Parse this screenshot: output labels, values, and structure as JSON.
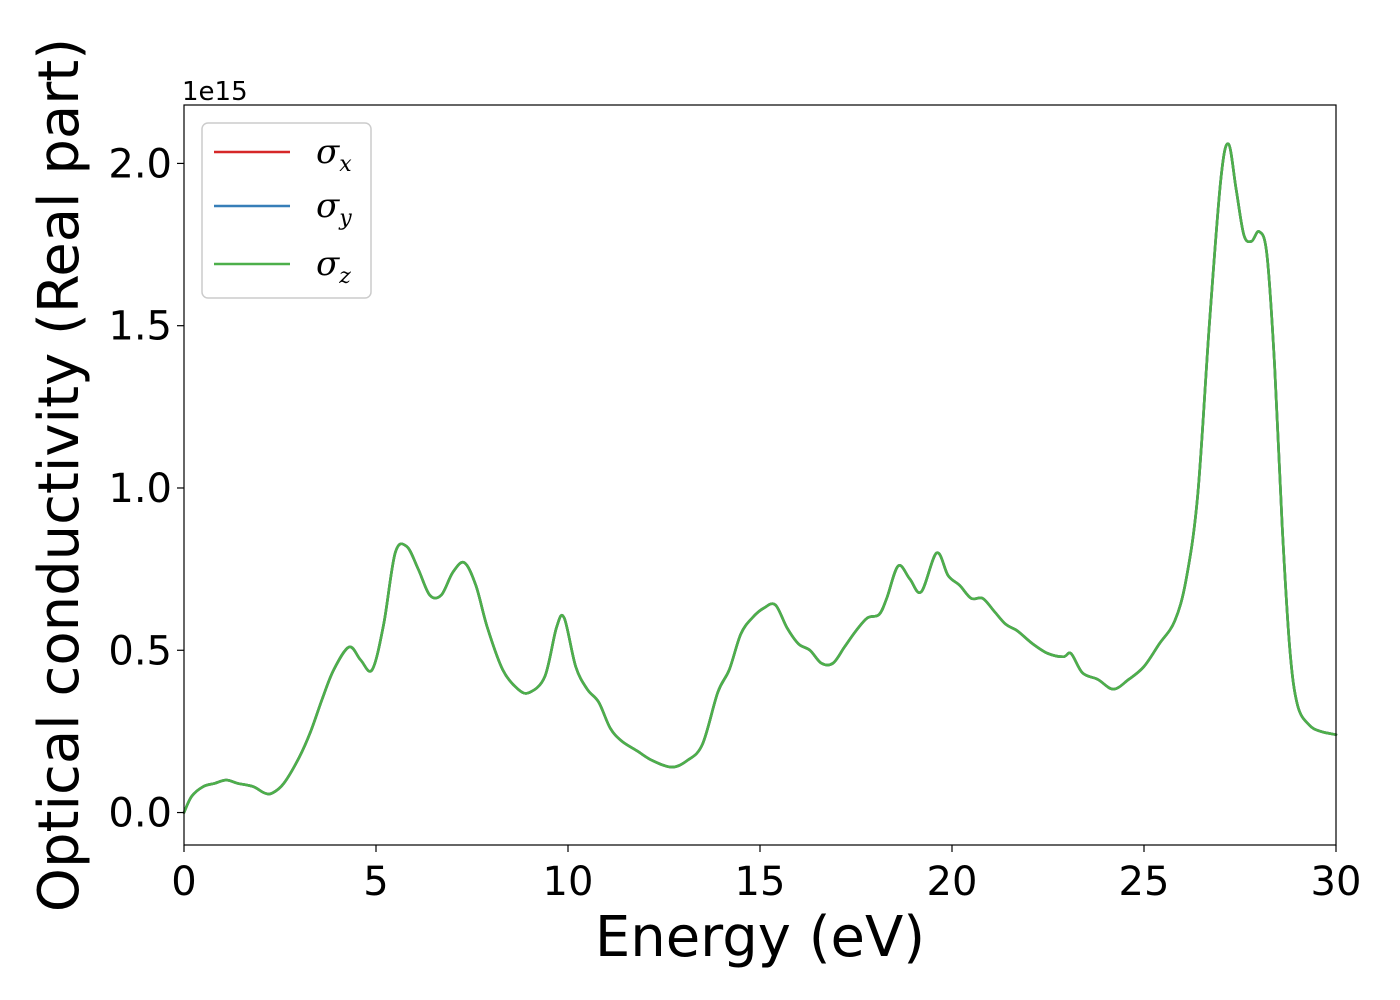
{
  "chart_data": {
    "type": "line",
    "title": "",
    "xlabel": "Energy (eV)",
    "ylabel": "Optical conductivity (Real part)",
    "y_offset_text": "1e15",
    "xlim": [
      0,
      30
    ],
    "ylim": [
      -0.1,
      2.18
    ],
    "xticks": [
      0,
      5,
      10,
      15,
      20,
      25,
      30
    ],
    "xtick_labels": [
      "0",
      "5",
      "10",
      "15",
      "20",
      "25",
      "30"
    ],
    "yticks": [
      0.0,
      0.5,
      1.0,
      1.5,
      2.0
    ],
    "ytick_labels": [
      "0.0",
      "0.5",
      "1.0",
      "1.5",
      "2.0"
    ],
    "grid": false,
    "legend_position": "top-left",
    "x": [
      0,
      0.2,
      0.5,
      0.8,
      1.1,
      1.4,
      1.8,
      2.1,
      2.3,
      2.6,
      3.0,
      3.3,
      3.6,
      3.9,
      4.3,
      4.6,
      4.9,
      5.2,
      5.5,
      5.8,
      6.1,
      6.4,
      6.7,
      7.0,
      7.3,
      7.6,
      7.9,
      8.3,
      8.7,
      9.0,
      9.4,
      9.7,
      9.9,
      10.2,
      10.5,
      10.8,
      11.1,
      11.4,
      11.8,
      12.2,
      12.7,
      13.1,
      13.5,
      13.9,
      14.2,
      14.5,
      14.8,
      15.1,
      15.4,
      15.7,
      16.0,
      16.3,
      16.6,
      16.9,
      17.2,
      17.5,
      17.8,
      18.1,
      18.3,
      18.6,
      18.9,
      19.2,
      19.6,
      19.9,
      20.2,
      20.5,
      20.8,
      21.1,
      21.4,
      21.7,
      22.1,
      22.5,
      22.9,
      23.1,
      23.4,
      23.8,
      24.2,
      24.6,
      25.0,
      25.4,
      25.8,
      26.1,
      26.4,
      26.7,
      27.0,
      27.2,
      27.4,
      27.6,
      27.8,
      28.0,
      28.2,
      28.4,
      28.6,
      28.8,
      29.0,
      29.3,
      29.6,
      30.0
    ],
    "series": [
      {
        "name": "σx",
        "color": "#d62728",
        "values": [
          0.0,
          0.05,
          0.08,
          0.09,
          0.1,
          0.09,
          0.08,
          0.06,
          0.06,
          0.09,
          0.17,
          0.25,
          0.35,
          0.44,
          0.51,
          0.47,
          0.44,
          0.58,
          0.8,
          0.82,
          0.75,
          0.67,
          0.67,
          0.74,
          0.77,
          0.7,
          0.57,
          0.44,
          0.38,
          0.37,
          0.42,
          0.57,
          0.6,
          0.45,
          0.38,
          0.34,
          0.26,
          0.22,
          0.19,
          0.16,
          0.14,
          0.16,
          0.21,
          0.37,
          0.44,
          0.55,
          0.6,
          0.63,
          0.64,
          0.57,
          0.52,
          0.5,
          0.46,
          0.46,
          0.51,
          0.56,
          0.6,
          0.61,
          0.66,
          0.76,
          0.72,
          0.68,
          0.8,
          0.73,
          0.7,
          0.66,
          0.66,
          0.62,
          0.58,
          0.56,
          0.52,
          0.49,
          0.48,
          0.49,
          0.43,
          0.41,
          0.38,
          0.41,
          0.45,
          0.52,
          0.59,
          0.72,
          0.98,
          1.5,
          1.95,
          2.06,
          1.92,
          1.78,
          1.76,
          1.79,
          1.72,
          1.38,
          0.88,
          0.5,
          0.33,
          0.27,
          0.25,
          0.24
        ]
      },
      {
        "name": "σy",
        "color": "#377eb8",
        "values": [
          0.0,
          0.05,
          0.08,
          0.09,
          0.1,
          0.09,
          0.08,
          0.06,
          0.06,
          0.09,
          0.17,
          0.25,
          0.35,
          0.44,
          0.51,
          0.47,
          0.44,
          0.58,
          0.8,
          0.82,
          0.75,
          0.67,
          0.67,
          0.74,
          0.77,
          0.7,
          0.57,
          0.44,
          0.38,
          0.37,
          0.42,
          0.57,
          0.6,
          0.45,
          0.38,
          0.34,
          0.26,
          0.22,
          0.19,
          0.16,
          0.14,
          0.16,
          0.21,
          0.37,
          0.44,
          0.55,
          0.6,
          0.63,
          0.64,
          0.57,
          0.52,
          0.5,
          0.46,
          0.46,
          0.51,
          0.56,
          0.6,
          0.61,
          0.66,
          0.76,
          0.72,
          0.68,
          0.8,
          0.73,
          0.7,
          0.66,
          0.66,
          0.62,
          0.58,
          0.56,
          0.52,
          0.49,
          0.48,
          0.49,
          0.43,
          0.41,
          0.38,
          0.41,
          0.45,
          0.52,
          0.59,
          0.72,
          0.98,
          1.5,
          1.95,
          2.06,
          1.92,
          1.78,
          1.76,
          1.79,
          1.72,
          1.38,
          0.88,
          0.5,
          0.33,
          0.27,
          0.25,
          0.24
        ]
      },
      {
        "name": "σz",
        "color": "#4daf4a",
        "values": [
          0.0,
          0.05,
          0.08,
          0.09,
          0.1,
          0.09,
          0.08,
          0.06,
          0.06,
          0.09,
          0.17,
          0.25,
          0.35,
          0.44,
          0.51,
          0.47,
          0.44,
          0.58,
          0.8,
          0.82,
          0.75,
          0.67,
          0.67,
          0.74,
          0.77,
          0.7,
          0.57,
          0.44,
          0.38,
          0.37,
          0.42,
          0.57,
          0.6,
          0.45,
          0.38,
          0.34,
          0.26,
          0.22,
          0.19,
          0.16,
          0.14,
          0.16,
          0.21,
          0.37,
          0.44,
          0.55,
          0.6,
          0.63,
          0.64,
          0.57,
          0.52,
          0.5,
          0.46,
          0.46,
          0.51,
          0.56,
          0.6,
          0.61,
          0.66,
          0.76,
          0.72,
          0.68,
          0.8,
          0.73,
          0.7,
          0.66,
          0.66,
          0.62,
          0.58,
          0.56,
          0.52,
          0.49,
          0.48,
          0.49,
          0.43,
          0.41,
          0.38,
          0.41,
          0.45,
          0.52,
          0.59,
          0.72,
          0.98,
          1.5,
          1.95,
          2.06,
          1.92,
          1.78,
          1.76,
          1.79,
          1.72,
          1.38,
          0.88,
          0.5,
          0.33,
          0.27,
          0.25,
          0.24
        ]
      }
    ]
  }
}
